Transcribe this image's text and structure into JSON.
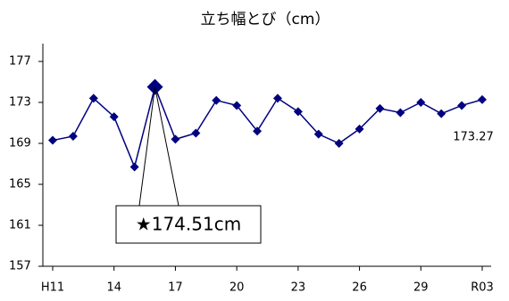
{
  "chart_data": {
    "type": "line",
    "title": "立ち幅とび（cm）",
    "categories": [
      "H11",
      null,
      null,
      "14",
      null,
      null,
      "17",
      null,
      null,
      "20",
      null,
      null,
      "23",
      null,
      null,
      "26",
      null,
      null,
      "29",
      null,
      null,
      "R03"
    ],
    "series": [
      {
        "color": "#000080",
        "values": [
          169.3,
          169.7,
          173.4,
          171.6,
          166.7,
          174.51,
          169.4,
          170.0,
          173.2,
          172.7,
          170.2,
          173.4,
          172.1,
          169.9,
          169.0,
          170.4,
          172.4,
          172.0,
          173.0,
          171.9,
          172.7,
          173.27
        ],
        "value_labels": [
          null,
          null,
          null,
          null,
          null,
          "★174.51cm",
          null,
          null,
          null,
          null,
          null,
          null,
          null,
          null,
          null,
          null,
          null,
          null,
          null,
          null,
          null,
          "173.27"
        ]
      }
    ],
    "ylim": [
      157,
      177
    ],
    "yticks": [
      157,
      161,
      165,
      169,
      173,
      177
    ],
    "grid": false
  }
}
